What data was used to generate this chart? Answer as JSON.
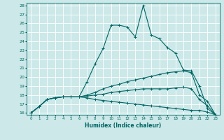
{
  "xlabel": "Humidex (Indice chaleur)",
  "bg_color": "#cce8e8",
  "line_color": "#006666",
  "grid_color": "#ffffff",
  "xlim": [
    -0.5,
    23.5
  ],
  "ylim": [
    15.8,
    28.3
  ],
  "yticks": [
    16,
    17,
    18,
    19,
    20,
    21,
    22,
    23,
    24,
    25,
    26,
    27,
    28
  ],
  "xticks": [
    0,
    1,
    2,
    3,
    4,
    5,
    6,
    7,
    8,
    9,
    10,
    11,
    12,
    13,
    14,
    15,
    16,
    17,
    18,
    19,
    20,
    21,
    22,
    23
  ],
  "lines": [
    {
      "x": [
        0,
        1,
        2,
        3,
        4,
        5,
        6,
        7,
        8,
        9,
        10,
        11,
        12,
        13,
        14,
        15,
        16,
        17,
        18,
        19,
        20,
        21,
        22,
        23
      ],
      "y": [
        16.0,
        16.7,
        17.5,
        17.7,
        17.8,
        17.8,
        17.8,
        19.5,
        21.5,
        23.2,
        25.8,
        25.8,
        25.6,
        24.5,
        28.0,
        24.7,
        24.3,
        23.3,
        22.7,
        20.8,
        20.7,
        19.0,
        16.5,
        15.8
      ]
    },
    {
      "x": [
        0,
        1,
        2,
        3,
        4,
        5,
        6,
        7,
        8,
        9,
        10,
        11,
        12,
        13,
        14,
        15,
        16,
        17,
        18,
        19,
        20,
        21,
        22,
        23
      ],
      "y": [
        16.0,
        16.7,
        17.5,
        17.7,
        17.8,
        17.8,
        17.8,
        18.0,
        18.3,
        18.7,
        19.0,
        19.2,
        19.5,
        19.7,
        19.9,
        20.1,
        20.3,
        20.5,
        20.6,
        20.7,
        20.5,
        18.0,
        17.3,
        15.8
      ]
    },
    {
      "x": [
        0,
        1,
        2,
        3,
        4,
        5,
        6,
        7,
        8,
        9,
        10,
        11,
        12,
        13,
        14,
        15,
        16,
        17,
        18,
        19,
        20,
        21,
        22,
        23
      ],
      "y": [
        16.0,
        16.7,
        17.5,
        17.7,
        17.8,
        17.8,
        17.8,
        17.9,
        18.0,
        18.1,
        18.3,
        18.4,
        18.5,
        18.6,
        18.7,
        18.7,
        18.7,
        18.7,
        18.8,
        18.9,
        18.7,
        17.5,
        16.8,
        15.8
      ]
    },
    {
      "x": [
        0,
        1,
        2,
        3,
        4,
        5,
        6,
        7,
        8,
        9,
        10,
        11,
        12,
        13,
        14,
        15,
        16,
        17,
        18,
        19,
        20,
        21,
        22,
        23
      ],
      "y": [
        16.0,
        16.7,
        17.5,
        17.7,
        17.8,
        17.8,
        17.8,
        17.7,
        17.5,
        17.4,
        17.3,
        17.2,
        17.1,
        17.0,
        16.9,
        16.8,
        16.7,
        16.6,
        16.5,
        16.4,
        16.3,
        16.3,
        16.1,
        15.8
      ]
    }
  ]
}
